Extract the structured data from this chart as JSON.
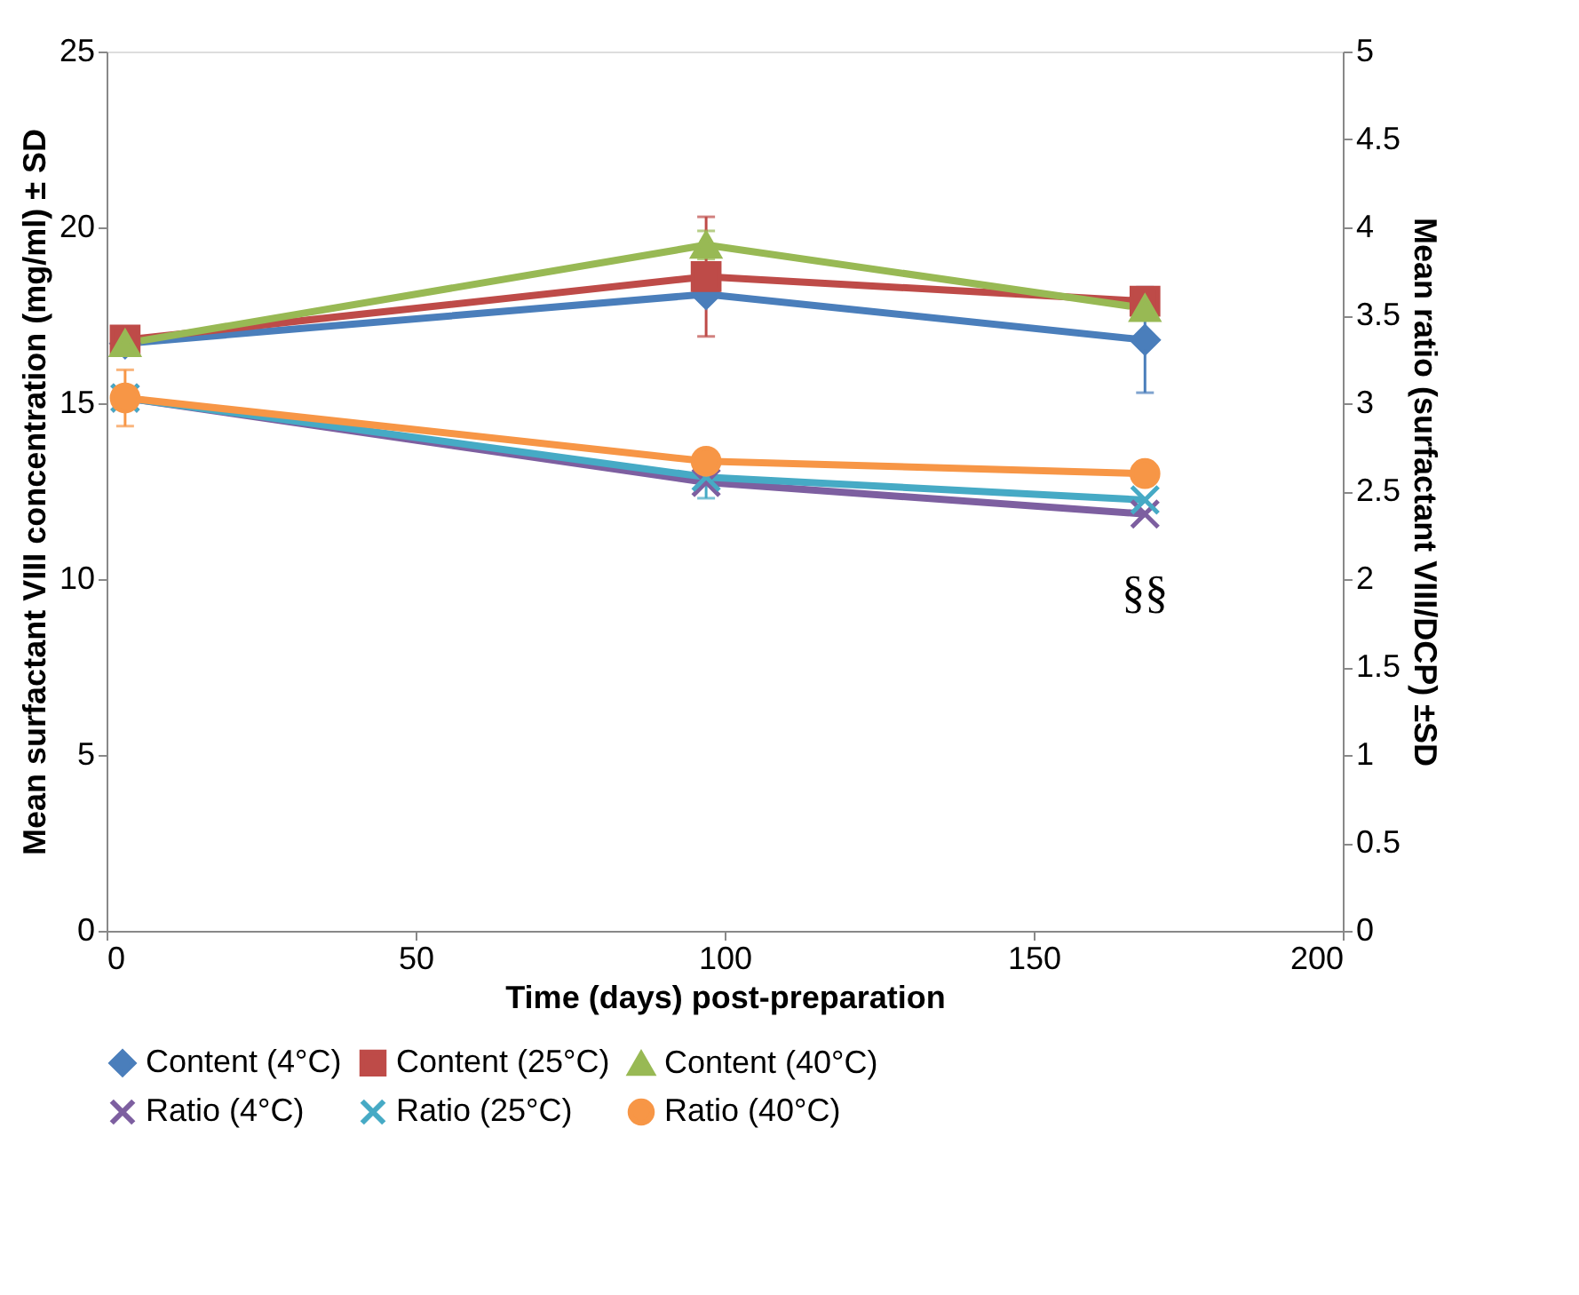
{
  "chart_data": {
    "type": "line",
    "xlabel": "Time (days) post-preparation",
    "ylabel": "Mean surfactant VIII concentration (mg/ml) ± SD",
    "y2label": "Mean ratio (surfactant VIII/DCP) ±SD",
    "x": [
      3,
      97,
      168
    ],
    "xlim": [
      0,
      200
    ],
    "xticks": [
      0,
      50,
      100,
      150,
      200
    ],
    "ylim": [
      0,
      25
    ],
    "yticks": [
      0,
      5,
      10,
      15,
      20,
      25
    ],
    "y2lim": [
      0,
      5
    ],
    "y2ticks": [
      0,
      0.5,
      1,
      1.5,
      2,
      2.5,
      3,
      3.5,
      4,
      4.5,
      5
    ],
    "grid": false,
    "legend": "bottom",
    "line_style": "solid",
    "series": [
      {
        "name": "Content (4°C)",
        "color": "#4a7ebb",
        "marker": "diamond",
        "values": [
          16.7,
          18.1,
          16.8
        ],
        "errors": [
          null,
          null,
          1.5
        ]
      },
      {
        "name": "Content (25°C)",
        "color": "#be4b48",
        "marker": "square",
        "values": [
          16.8,
          18.6,
          17.9
        ],
        "errors": [
          null,
          1.7,
          null
        ]
      },
      {
        "name": "Content (40°C)",
        "color": "#98b954",
        "marker": "triangle",
        "values": [
          16.7,
          19.5,
          17.7
        ],
        "errors": [
          null,
          0.4,
          null
        ]
      },
      {
        "name": "Ratio (4°C)",
        "color": "#7d5fa0",
        "marker": "cross",
        "axis": "y2",
        "values": [
          3.03,
          2.55,
          2.37
        ],
        "errors": [
          null,
          null,
          null
        ]
      },
      {
        "name": "Ratio (25°C)",
        "color": "#46aac5",
        "marker": "cross",
        "axis": "y2",
        "values": [
          3.03,
          2.58,
          2.45
        ],
        "errors": [
          null,
          0.12,
          null
        ]
      },
      {
        "name": "Ratio (40°C)",
        "color": "#f79646",
        "marker": "circle",
        "axis": "y2",
        "values": [
          3.03,
          2.67,
          2.6
        ],
        "errors": [
          0.16,
          null,
          null
        ]
      }
    ],
    "annotations": [
      "§§"
    ]
  }
}
